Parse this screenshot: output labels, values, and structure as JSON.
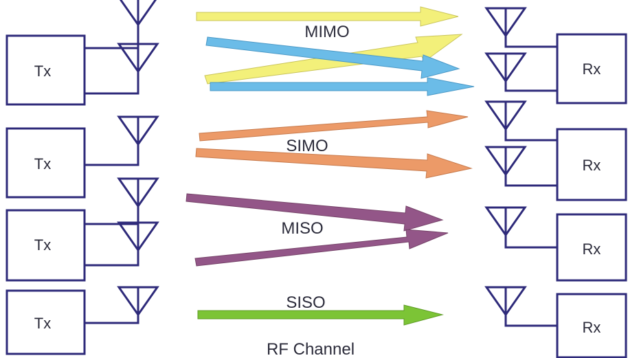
{
  "colors": {
    "line": "#2e2a7a",
    "mimo_yellow": "#f3f07a",
    "mimo_blue": "#6bbce8",
    "simo_orange": "#ec9a68",
    "miso_purple": "#935688",
    "siso_green": "#7cc436",
    "text": "#2b2b3a"
  },
  "icons": [
    "antenna-icon"
  ],
  "footer": {
    "label": "RF Channel"
  },
  "sections": [
    {
      "id": "mimo",
      "label": "MIMO",
      "tx": "Tx",
      "rx": "Rx"
    },
    {
      "id": "simo",
      "label": "SIMO",
      "tx": "Tx",
      "rx": "Rx"
    },
    {
      "id": "miso",
      "label": "MISO",
      "tx": "Tx",
      "rx": "Rx"
    },
    {
      "id": "siso",
      "label": "SISO",
      "tx": "Tx",
      "rx": "Rx"
    }
  ]
}
